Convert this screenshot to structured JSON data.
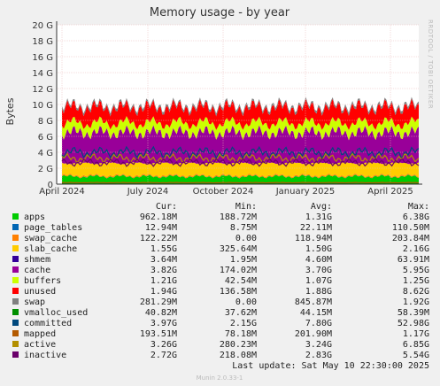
{
  "chart_data": {
    "type": "area",
    "title": "Memory usage - by year",
    "ylabel": "Bytes",
    "side_text": "RRDTOOL / TOBI OETIKER",
    "yticks": [
      "0",
      "2 G",
      "4 G",
      "6 G",
      "8 G",
      "10 G",
      "12 G",
      "14 G",
      "16 G",
      "18 G",
      "20 G"
    ],
    "ylim": [
      0,
      20
    ],
    "xticks": [
      "April 2024",
      "July 2024",
      "October 2024",
      "January 2025",
      "April 2025"
    ],
    "grid": true,
    "legend_headers": {
      "cur": "Cur:",
      "min": "Min:",
      "avg": "Avg:",
      "max": "Max:"
    },
    "series": [
      {
        "name": "apps",
        "color": "#00cc00",
        "cur": "962.18M",
        "min": "188.72M",
        "avg": "1.31G",
        "max": "6.38G",
        "value": 0.96
      },
      {
        "name": "page_tables",
        "color": "#0066b3",
        "cur": "12.94M",
        "min": "8.75M",
        "avg": "22.11M",
        "max": "110.50M",
        "value": 0.013
      },
      {
        "name": "swap_cache",
        "color": "#ff8000",
        "cur": "122.22M",
        "min": "0.00",
        "avg": "118.94M",
        "max": "203.84M",
        "value": 0.12
      },
      {
        "name": "slab_cache",
        "color": "#ffcc00",
        "cur": "1.55G",
        "min": "325.64M",
        "avg": "1.50G",
        "max": "2.16G",
        "value": 1.55
      },
      {
        "name": "shmem",
        "color": "#330099",
        "cur": "3.64M",
        "min": "1.95M",
        "avg": "4.60M",
        "max": "63.91M",
        "value": 0.004
      },
      {
        "name": "cache",
        "color": "#990099",
        "cur": "3.82G",
        "min": "174.02M",
        "avg": "3.70G",
        "max": "5.95G",
        "value": 3.82
      },
      {
        "name": "buffers",
        "color": "#ccff00",
        "cur": "1.21G",
        "min": "42.54M",
        "avg": "1.07G",
        "max": "1.25G",
        "value": 1.21
      },
      {
        "name": "unused",
        "color": "#ff0000",
        "cur": "1.94G",
        "min": "136.58M",
        "avg": "1.88G",
        "max": "8.62G",
        "value": 1.94
      },
      {
        "name": "swap",
        "color": "#808080",
        "cur": "281.29M",
        "min": "0.00",
        "avg": "845.87M",
        "max": "1.92G",
        "value": 0.28
      },
      {
        "name": "vmalloc_used",
        "color": "#008f00",
        "cur": "40.82M",
        "min": "37.62M",
        "avg": "44.15M",
        "max": "58.39M",
        "value": 0.04
      },
      {
        "name": "committed",
        "color": "#00487d",
        "cur": "3.97G",
        "min": "2.15G",
        "avg": "7.80G",
        "max": "52.98G",
        "value": 3.97
      },
      {
        "name": "mapped",
        "color": "#b35a00",
        "cur": "193.51M",
        "min": "78.18M",
        "avg": "201.90M",
        "max": "1.17G",
        "value": 0.19
      },
      {
        "name": "active",
        "color": "#b38f00",
        "cur": "3.26G",
        "min": "280.23M",
        "avg": "3.24G",
        "max": "6.85G",
        "value": 3.26
      },
      {
        "name": "inactive",
        "color": "#6b006b",
        "cur": "2.72G",
        "min": "218.08M",
        "avg": "2.83G",
        "max": "5.54G",
        "value": 2.72
      }
    ],
    "last_update": "Last update:  Sat May 10 22:30:00 2025",
    "footer": "Munin 2.0.33-1"
  }
}
